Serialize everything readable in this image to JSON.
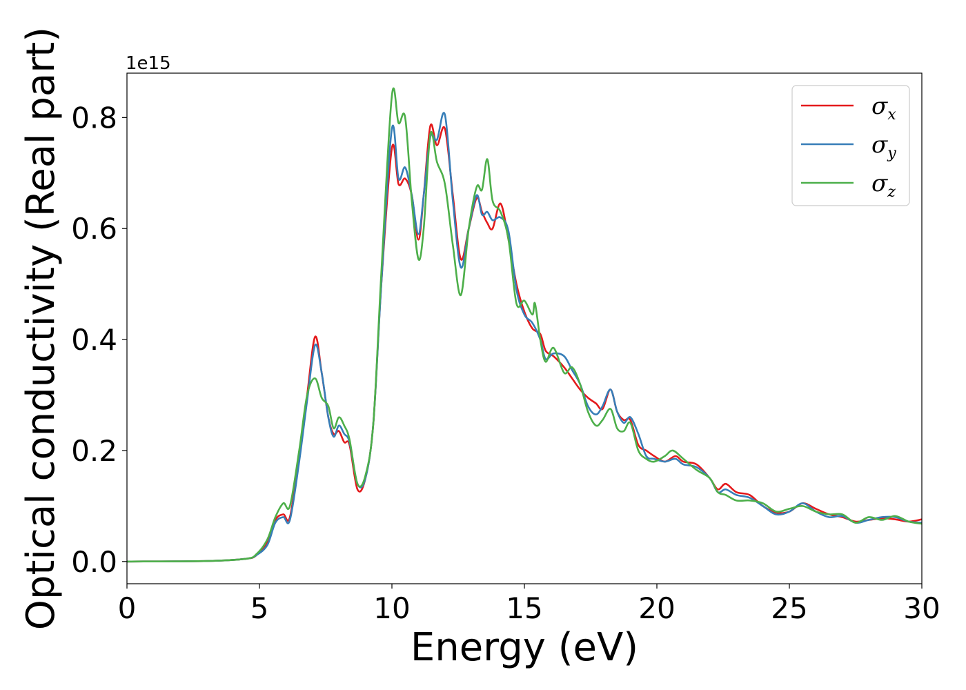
{
  "chart_data": {
    "type": "line",
    "xlabel": "Energy (eV)",
    "ylabel": "Optical conductivity (Real part)",
    "y_offset_label": "1e15",
    "xlim": [
      0,
      30
    ],
    "ylim": [
      -0.04,
      0.88
    ],
    "x_ticks": [
      0,
      5,
      10,
      15,
      20,
      25,
      30
    ],
    "x_tick_labels": [
      "0",
      "5",
      "10",
      "15",
      "20",
      "25",
      "30"
    ],
    "y_ticks": [
      0.0,
      0.2,
      0.4,
      0.6,
      0.8
    ],
    "y_tick_labels": [
      "0.0",
      "0.2",
      "0.4",
      "0.6",
      "0.8"
    ],
    "grid": false,
    "legend_position": "top-right",
    "series": [
      {
        "name": "σx",
        "legend_symbol": "σ",
        "legend_sub": "x",
        "color": "#e41a1c",
        "points": [
          [
            0,
            0
          ],
          [
            3,
            0.001
          ],
          [
            4.5,
            0.005
          ],
          [
            4.9,
            0.012
          ],
          [
            5.3,
            0.035
          ],
          [
            5.6,
            0.075
          ],
          [
            5.9,
            0.085
          ],
          [
            6.15,
            0.08
          ],
          [
            6.5,
            0.19
          ],
          [
            6.8,
            0.3
          ],
          [
            7.1,
            0.405
          ],
          [
            7.35,
            0.34
          ],
          [
            7.6,
            0.26
          ],
          [
            7.8,
            0.23
          ],
          [
            8.0,
            0.235
          ],
          [
            8.2,
            0.215
          ],
          [
            8.4,
            0.21
          ],
          [
            8.7,
            0.13
          ],
          [
            9.0,
            0.15
          ],
          [
            9.3,
            0.25
          ],
          [
            9.6,
            0.5
          ],
          [
            10.0,
            0.745
          ],
          [
            10.25,
            0.68
          ],
          [
            10.5,
            0.69
          ],
          [
            10.75,
            0.66
          ],
          [
            11.0,
            0.58
          ],
          [
            11.2,
            0.66
          ],
          [
            11.45,
            0.785
          ],
          [
            11.7,
            0.75
          ],
          [
            12.0,
            0.78
          ],
          [
            12.3,
            0.66
          ],
          [
            12.6,
            0.545
          ],
          [
            12.9,
            0.6
          ],
          [
            13.2,
            0.655
          ],
          [
            13.4,
            0.63
          ],
          [
            13.6,
            0.61
          ],
          [
            13.8,
            0.6
          ],
          [
            14.1,
            0.645
          ],
          [
            14.4,
            0.58
          ],
          [
            14.7,
            0.5
          ],
          [
            15.0,
            0.45
          ],
          [
            15.3,
            0.42
          ],
          [
            15.6,
            0.41
          ],
          [
            15.8,
            0.38
          ],
          [
            16.1,
            0.37
          ],
          [
            16.5,
            0.35
          ],
          [
            16.8,
            0.33
          ],
          [
            17.1,
            0.31
          ],
          [
            17.4,
            0.295
          ],
          [
            17.7,
            0.285
          ],
          [
            17.95,
            0.275
          ],
          [
            18.25,
            0.31
          ],
          [
            18.5,
            0.27
          ],
          [
            18.75,
            0.255
          ],
          [
            19.0,
            0.255
          ],
          [
            19.3,
            0.21
          ],
          [
            19.6,
            0.2
          ],
          [
            19.9,
            0.19
          ],
          [
            20.3,
            0.18
          ],
          [
            20.7,
            0.19
          ],
          [
            21.0,
            0.18
          ],
          [
            21.5,
            0.175
          ],
          [
            22.0,
            0.15
          ],
          [
            22.3,
            0.13
          ],
          [
            22.6,
            0.14
          ],
          [
            23.0,
            0.125
          ],
          [
            23.5,
            0.12
          ],
          [
            24.0,
            0.1
          ],
          [
            24.5,
            0.088
          ],
          [
            25.0,
            0.09
          ],
          [
            25.5,
            0.105
          ],
          [
            26.0,
            0.095
          ],
          [
            26.5,
            0.085
          ],
          [
            27.0,
            0.08
          ],
          [
            27.5,
            0.072
          ],
          [
            28.0,
            0.075
          ],
          [
            28.5,
            0.078
          ],
          [
            29.0,
            0.076
          ],
          [
            29.5,
            0.072
          ],
          [
            30.0,
            0.076
          ]
        ]
      },
      {
        "name": "σy",
        "legend_symbol": "σ",
        "legend_sub": "y",
        "color": "#377eb8",
        "points": [
          [
            0,
            0
          ],
          [
            3,
            0.001
          ],
          [
            4.5,
            0.005
          ],
          [
            4.9,
            0.012
          ],
          [
            5.3,
            0.03
          ],
          [
            5.6,
            0.07
          ],
          [
            5.9,
            0.08
          ],
          [
            6.15,
            0.075
          ],
          [
            6.5,
            0.18
          ],
          [
            6.8,
            0.29
          ],
          [
            7.1,
            0.39
          ],
          [
            7.35,
            0.34
          ],
          [
            7.6,
            0.26
          ],
          [
            7.8,
            0.225
          ],
          [
            8.0,
            0.245
          ],
          [
            8.2,
            0.23
          ],
          [
            8.4,
            0.215
          ],
          [
            8.7,
            0.14
          ],
          [
            9.0,
            0.15
          ],
          [
            9.3,
            0.25
          ],
          [
            9.6,
            0.5
          ],
          [
            10.0,
            0.78
          ],
          [
            10.25,
            0.69
          ],
          [
            10.5,
            0.71
          ],
          [
            10.75,
            0.66
          ],
          [
            11.0,
            0.59
          ],
          [
            11.2,
            0.66
          ],
          [
            11.45,
            0.765
          ],
          [
            11.7,
            0.76
          ],
          [
            12.0,
            0.805
          ],
          [
            12.3,
            0.65
          ],
          [
            12.6,
            0.53
          ],
          [
            12.9,
            0.6
          ],
          [
            13.2,
            0.66
          ],
          [
            13.4,
            0.625
          ],
          [
            13.6,
            0.63
          ],
          [
            13.8,
            0.615
          ],
          [
            14.1,
            0.62
          ],
          [
            14.4,
            0.595
          ],
          [
            14.7,
            0.49
          ],
          [
            15.0,
            0.445
          ],
          [
            15.3,
            0.43
          ],
          [
            15.6,
            0.4
          ],
          [
            15.8,
            0.365
          ],
          [
            16.1,
            0.375
          ],
          [
            16.5,
            0.37
          ],
          [
            16.8,
            0.345
          ],
          [
            17.1,
            0.32
          ],
          [
            17.4,
            0.28
          ],
          [
            17.7,
            0.265
          ],
          [
            17.95,
            0.28
          ],
          [
            18.25,
            0.31
          ],
          [
            18.5,
            0.27
          ],
          [
            18.75,
            0.25
          ],
          [
            19.0,
            0.26
          ],
          [
            19.3,
            0.23
          ],
          [
            19.6,
            0.19
          ],
          [
            19.9,
            0.185
          ],
          [
            20.3,
            0.18
          ],
          [
            20.7,
            0.185
          ],
          [
            21.0,
            0.175
          ],
          [
            21.5,
            0.17
          ],
          [
            22.0,
            0.15
          ],
          [
            22.3,
            0.125
          ],
          [
            22.6,
            0.13
          ],
          [
            23.0,
            0.12
          ],
          [
            23.5,
            0.115
          ],
          [
            24.0,
            0.1
          ],
          [
            24.5,
            0.085
          ],
          [
            25.0,
            0.09
          ],
          [
            25.5,
            0.105
          ],
          [
            26.0,
            0.09
          ],
          [
            26.5,
            0.08
          ],
          [
            27.0,
            0.082
          ],
          [
            27.5,
            0.07
          ],
          [
            28.0,
            0.075
          ],
          [
            28.5,
            0.08
          ],
          [
            29.0,
            0.08
          ],
          [
            29.5,
            0.072
          ],
          [
            30.0,
            0.07
          ]
        ]
      },
      {
        "name": "σz",
        "legend_symbol": "σ",
        "legend_sub": "z",
        "color": "#4daf4a",
        "points": [
          [
            0,
            0
          ],
          [
            3,
            0.001
          ],
          [
            4.5,
            0.005
          ],
          [
            4.9,
            0.014
          ],
          [
            5.3,
            0.04
          ],
          [
            5.6,
            0.08
          ],
          [
            5.9,
            0.105
          ],
          [
            6.15,
            0.1
          ],
          [
            6.5,
            0.2
          ],
          [
            6.8,
            0.3
          ],
          [
            7.1,
            0.33
          ],
          [
            7.35,
            0.295
          ],
          [
            7.6,
            0.28
          ],
          [
            7.8,
            0.24
          ],
          [
            8.0,
            0.26
          ],
          [
            8.2,
            0.245
          ],
          [
            8.4,
            0.22
          ],
          [
            8.7,
            0.14
          ],
          [
            9.0,
            0.155
          ],
          [
            9.3,
            0.25
          ],
          [
            9.6,
            0.52
          ],
          [
            10.0,
            0.84
          ],
          [
            10.25,
            0.79
          ],
          [
            10.5,
            0.8
          ],
          [
            10.75,
            0.65
          ],
          [
            11.0,
            0.545
          ],
          [
            11.2,
            0.6
          ],
          [
            11.45,
            0.77
          ],
          [
            11.7,
            0.72
          ],
          [
            12.0,
            0.68
          ],
          [
            12.3,
            0.57
          ],
          [
            12.6,
            0.48
          ],
          [
            12.9,
            0.6
          ],
          [
            13.2,
            0.675
          ],
          [
            13.4,
            0.67
          ],
          [
            13.6,
            0.725
          ],
          [
            13.8,
            0.65
          ],
          [
            14.1,
            0.63
          ],
          [
            14.4,
            0.58
          ],
          [
            14.7,
            0.465
          ],
          [
            15.0,
            0.47
          ],
          [
            15.3,
            0.445
          ],
          [
            15.4,
            0.465
          ],
          [
            15.6,
            0.4
          ],
          [
            15.8,
            0.36
          ],
          [
            16.1,
            0.385
          ],
          [
            16.5,
            0.34
          ],
          [
            16.8,
            0.35
          ],
          [
            17.1,
            0.32
          ],
          [
            17.4,
            0.27
          ],
          [
            17.7,
            0.245
          ],
          [
            17.95,
            0.255
          ],
          [
            18.25,
            0.275
          ],
          [
            18.5,
            0.24
          ],
          [
            18.75,
            0.235
          ],
          [
            19.0,
            0.25
          ],
          [
            19.3,
            0.2
          ],
          [
            19.6,
            0.185
          ],
          [
            19.9,
            0.18
          ],
          [
            20.3,
            0.19
          ],
          [
            20.6,
            0.2
          ],
          [
            21.0,
            0.185
          ],
          [
            21.5,
            0.165
          ],
          [
            22.0,
            0.15
          ],
          [
            22.3,
            0.125
          ],
          [
            22.6,
            0.12
          ],
          [
            23.0,
            0.11
          ],
          [
            23.5,
            0.11
          ],
          [
            24.0,
            0.105
          ],
          [
            24.5,
            0.09
          ],
          [
            25.0,
            0.095
          ],
          [
            25.5,
            0.1
          ],
          [
            26.0,
            0.09
          ],
          [
            26.5,
            0.085
          ],
          [
            27.0,
            0.085
          ],
          [
            27.5,
            0.07
          ],
          [
            28.0,
            0.08
          ],
          [
            28.5,
            0.075
          ],
          [
            29.0,
            0.082
          ],
          [
            29.5,
            0.072
          ],
          [
            30.0,
            0.068
          ]
        ]
      }
    ]
  }
}
